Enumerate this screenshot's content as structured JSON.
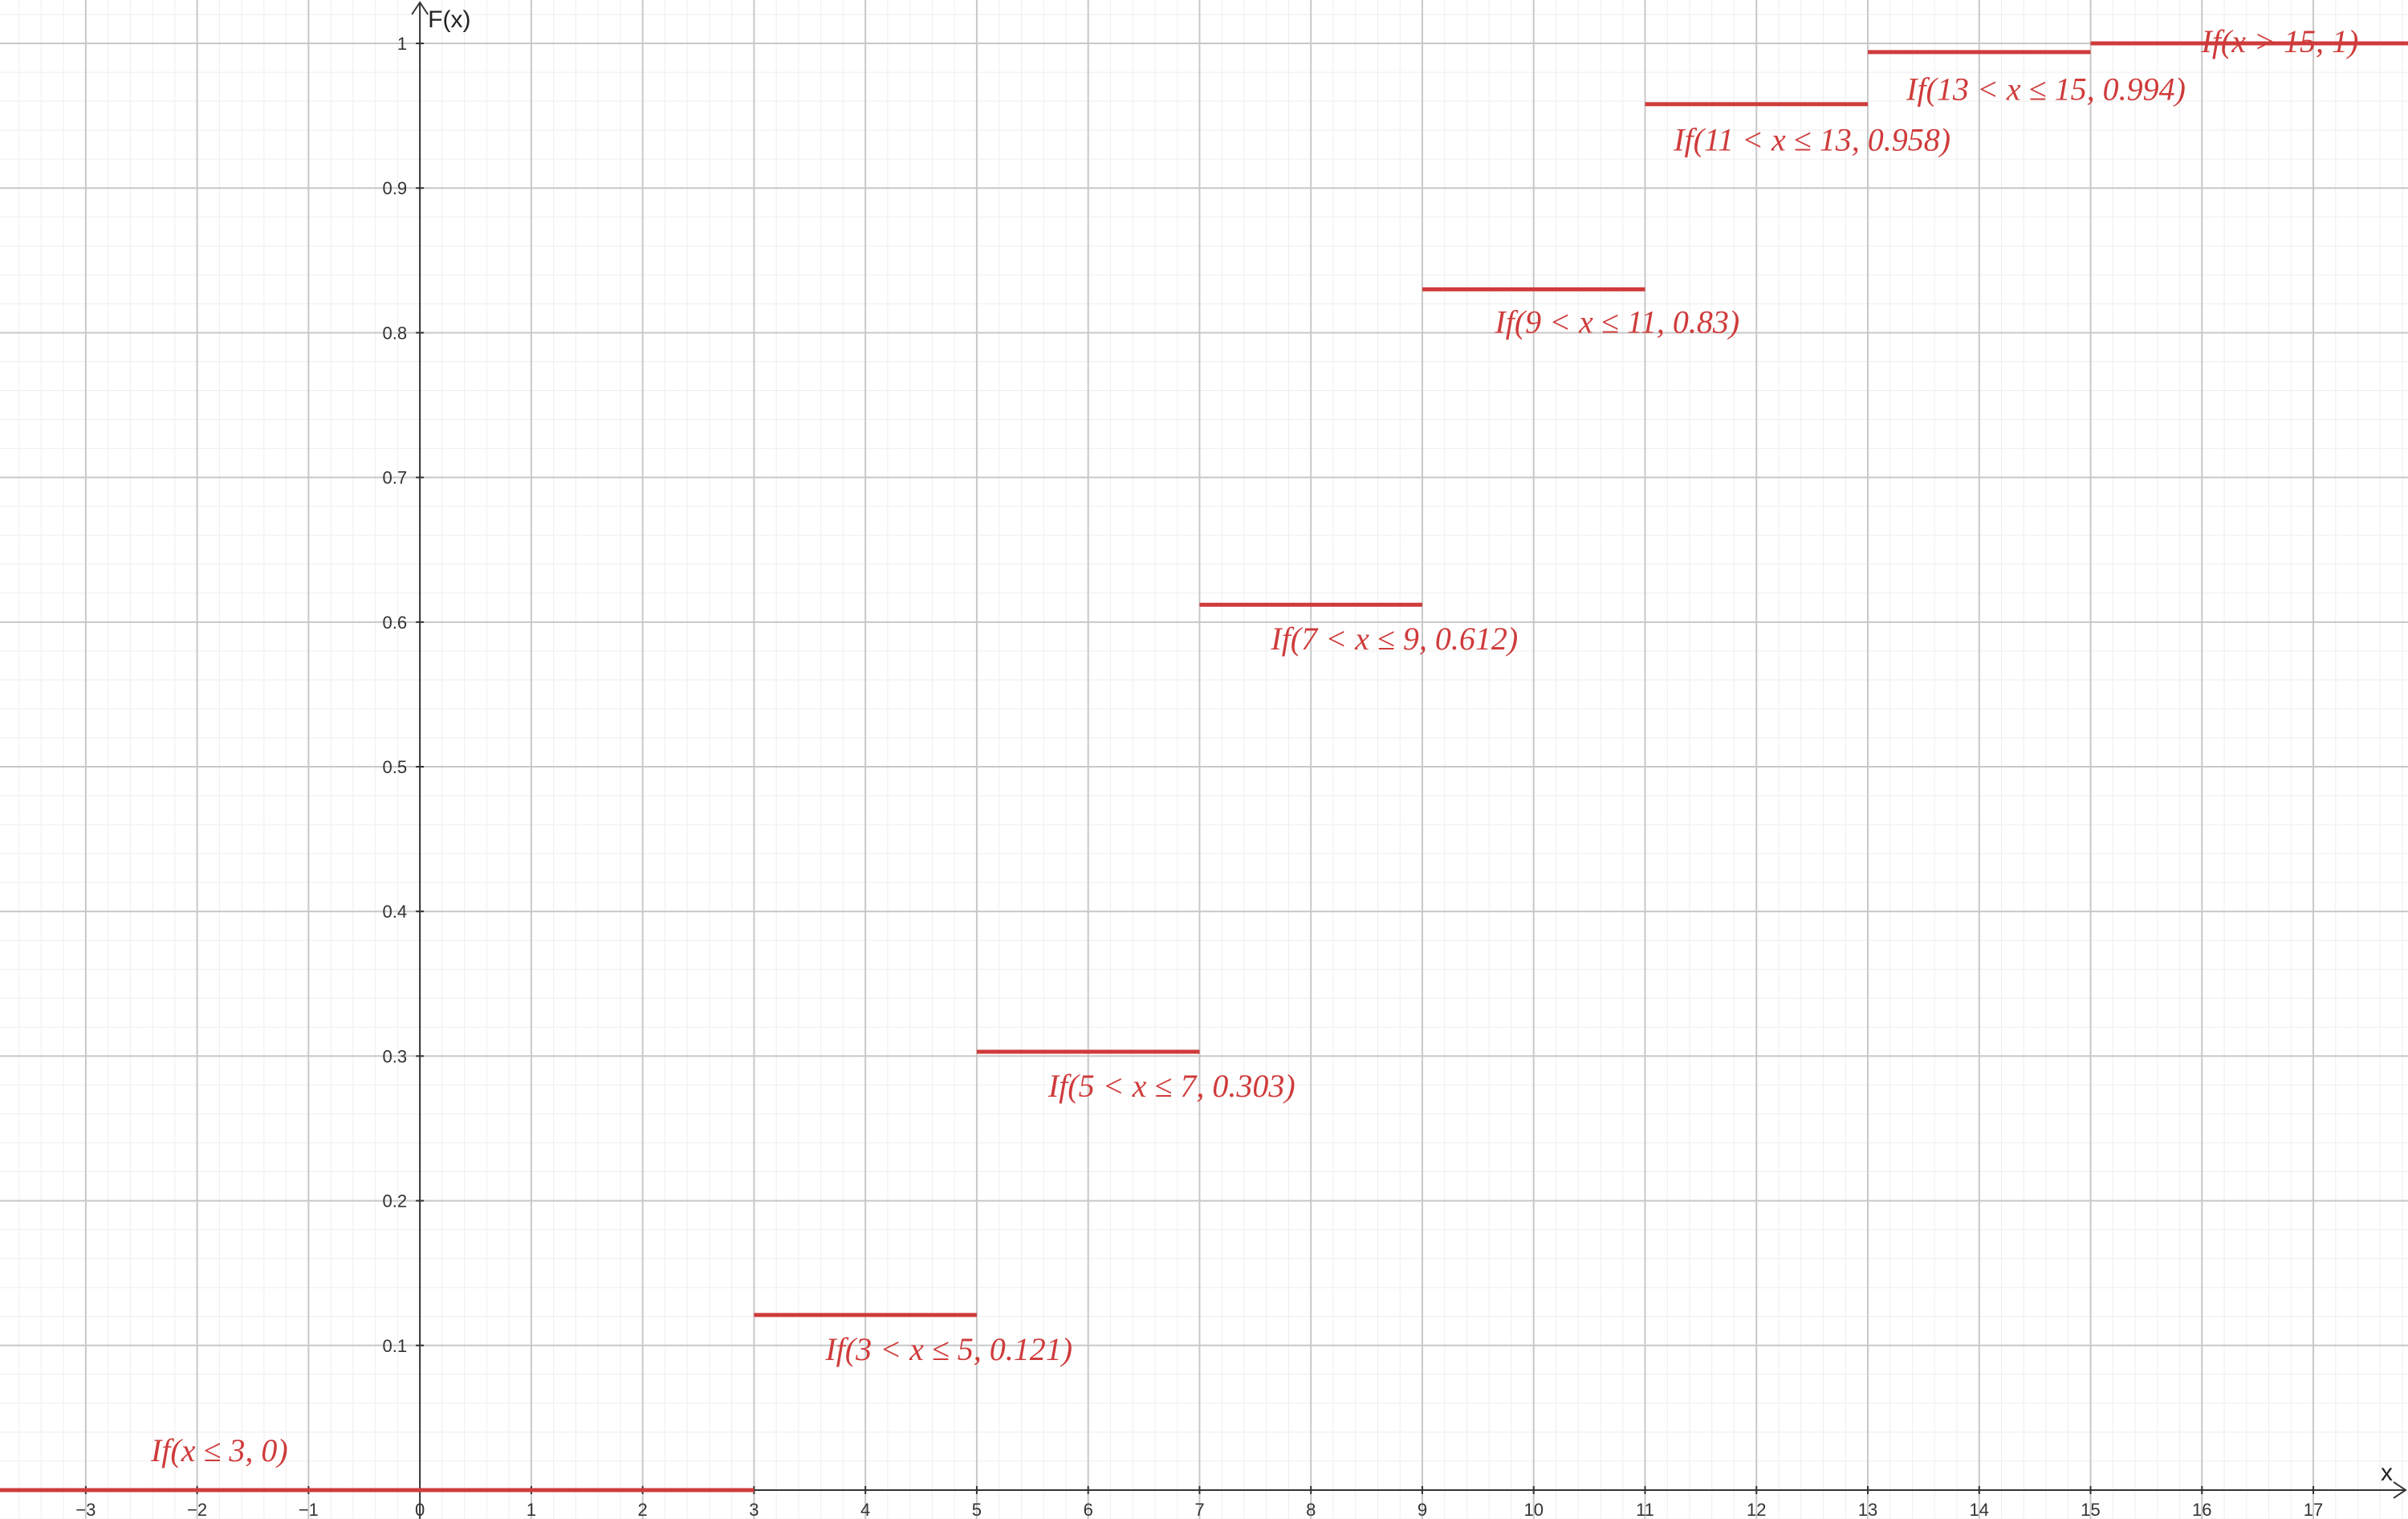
{
  "chart_data": {
    "type": "line",
    "title": "",
    "xlabel": "x",
    "ylabel": "F(x)",
    "xlim": [
      -3.77,
      17.85
    ],
    "ylim": [
      -0.02,
      1.03
    ],
    "grid": true,
    "x_ticks": [
      -3,
      -2,
      -1,
      0,
      1,
      2,
      3,
      4,
      5,
      6,
      7,
      8,
      9,
      10,
      11,
      12,
      13,
      14,
      15,
      16,
      17
    ],
    "y_ticks": [
      0.1,
      0.2,
      0.3,
      0.4,
      0.5,
      0.6,
      0.7,
      0.8,
      0.9,
      1
    ],
    "x_tick_labels": [
      "−3",
      "−2",
      "−1",
      "0",
      "1",
      "2",
      "3",
      "4",
      "5",
      "6",
      "7",
      "8",
      "9",
      "10",
      "11",
      "12",
      "13",
      "14",
      "15",
      "16",
      "17"
    ],
    "y_tick_labels": [
      "0.1",
      "0.2",
      "0.3",
      "0.4",
      "0.5",
      "0.6",
      "0.7",
      "0.8",
      "0.9",
      "1"
    ],
    "line_color": "#cf3b3b",
    "series": [
      {
        "segments": [
          {
            "x1": -3.77,
            "x2": 3,
            "y": 0,
            "label": "If(x ≤ 3, 0)",
            "label_at": [
              -1.8,
              0.02
            ]
          },
          {
            "x1": 3,
            "x2": 5,
            "y": 0.121,
            "label": "If(3 < x ≤ 5, 0.121)",
            "label_at": [
              4.75,
              0.09
            ]
          },
          {
            "x1": 5,
            "x2": 7,
            "y": 0.303,
            "label": "If(5 < x ≤ 7, 0.303)",
            "label_at": [
              6.75,
              0.272
            ]
          },
          {
            "x1": 7,
            "x2": 9,
            "y": 0.612,
            "label": "If(7 < x ≤ 9, 0.612)",
            "label_at": [
              8.75,
              0.581
            ]
          },
          {
            "x1": 9,
            "x2": 11,
            "y": 0.83,
            "label": "If(9 < x ≤ 11, 0.83)",
            "label_at": [
              10.75,
              0.8
            ]
          },
          {
            "x1": 11,
            "x2": 13,
            "y": 0.958,
            "label": "If(11 < x ≤ 13, 0.958)",
            "label_at": [
              12.5,
              0.926
            ]
          },
          {
            "x1": 13,
            "x2": 15,
            "y": 0.994,
            "label": "If(13 < x ≤ 15, 0.994)",
            "label_at": [
              14.6,
              0.961
            ]
          },
          {
            "x1": 15,
            "x2": 17.85,
            "y": 1,
            "label": "If(x > 15, 1)",
            "label_at": [
              16.7,
              0.994
            ]
          }
        ]
      }
    ]
  }
}
